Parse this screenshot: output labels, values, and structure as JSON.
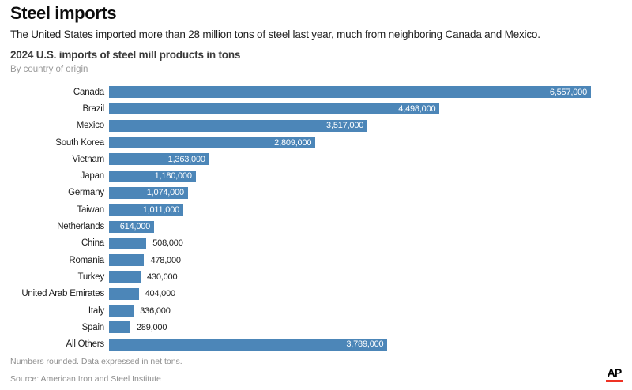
{
  "page": {
    "title": "Steel imports",
    "description": "The United States imported more than 28 million tons of steel last year, much from neighboring Canada and Mexico."
  },
  "chart": {
    "title": "2024 U.S. imports of steel mill products in tons",
    "subtitle": "By country of origin",
    "note": "Numbers rounded. Data expressed in net tons.",
    "source": "Source: American Iron and Steel Institute",
    "bar_color": "#4c86b8",
    "inside_label_color": "#ffffff",
    "outside_label_color": "#1c1c1c"
  },
  "branding": {
    "logo_text": "AP",
    "logo_underline_color": "#ee3224"
  },
  "chart_data": {
    "type": "bar",
    "orientation": "horizontal",
    "title": "2024 U.S. imports of steel mill products in tons",
    "subtitle": "By country of origin",
    "xlabel": "",
    "ylabel": "",
    "xlim": [
      0,
      6557000
    ],
    "grid": false,
    "legend": false,
    "categories": [
      "Canada",
      "Brazil",
      "Mexico",
      "South Korea",
      "Vietnam",
      "Japan",
      "Germany",
      "Taiwan",
      "Netherlands",
      "China",
      "Romania",
      "Turkey",
      "United Arab Emirates",
      "Italy",
      "Spain",
      "All Others"
    ],
    "values": [
      6557000,
      4498000,
      3517000,
      2809000,
      1363000,
      1180000,
      1074000,
      1011000,
      614000,
      508000,
      478000,
      430000,
      404000,
      336000,
      289000,
      3789000
    ],
    "value_labels": [
      "6,557,000",
      "4,498,000",
      "3,517,000",
      "2,809,000",
      "1,363,000",
      "1,180,000",
      "1,074,000",
      "1,011,000",
      "614,000",
      "508,000",
      "478,000",
      "430,000",
      "404,000",
      "336,000",
      "289,000",
      "3,789,000"
    ]
  }
}
